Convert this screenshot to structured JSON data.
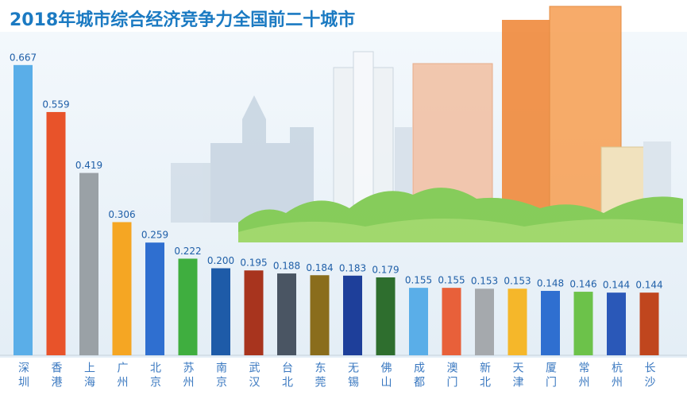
{
  "chart_data": {
    "type": "bar",
    "title": "2018年城市综合经济竞争力全国前二十城市",
    "categories": [
      "深圳",
      "香港",
      "上海",
      "广州",
      "北京",
      "苏州",
      "南京",
      "武汉",
      "台北",
      "东莞",
      "无锡",
      "佛山",
      "成都",
      "澳门",
      "新北",
      "天津",
      "厦门",
      "常州",
      "杭州",
      "长沙"
    ],
    "values": [
      0.667,
      0.559,
      0.419,
      0.306,
      0.259,
      0.222,
      0.2,
      0.195,
      0.188,
      0.184,
      0.183,
      0.179,
      0.155,
      0.155,
      0.153,
      0.153,
      0.148,
      0.146,
      0.144,
      0.144
    ],
    "value_labels": [
      "0.667",
      "0.559",
      "0.419",
      "0.306",
      "0.259",
      "0.222",
      "0.200",
      "0.195",
      "0.188",
      "0.184",
      "0.183",
      "0.179",
      "0.155",
      "0.155",
      "0.153",
      "0.153",
      "0.148",
      "0.146",
      "0.144",
      "0.144"
    ],
    "colors": [
      "#5aaee8",
      "#e8532a",
      "#9aa1a6",
      "#f5a623",
      "#2f6fd0",
      "#3fae3f",
      "#1e5ba8",
      "#a8341e",
      "#4a5563",
      "#8a6d1c",
      "#1e3f9a",
      "#2e6e2e",
      "#5aaee8",
      "#e8603a",
      "#a5a9ad",
      "#f5b72a",
      "#2f6fd0",
      "#6cc24a",
      "#2a58b8",
      "#c0461e"
    ],
    "ylim": [
      0,
      0.8
    ]
  }
}
